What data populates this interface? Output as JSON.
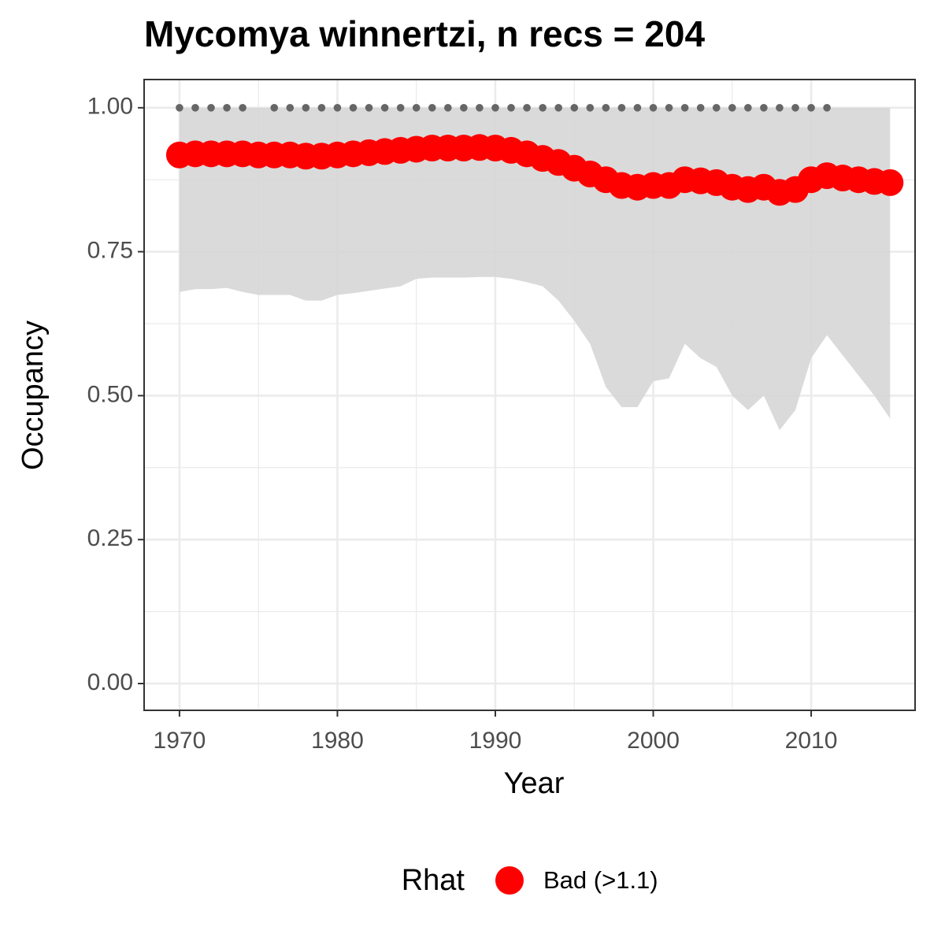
{
  "chart_data": {
    "type": "line",
    "title": "Mycomya winnertzi, n recs = 204",
    "x_label": "Year",
    "y_label": "Occupancy",
    "x": [
      1970,
      1971,
      1972,
      1973,
      1974,
      1975,
      1976,
      1977,
      1978,
      1979,
      1980,
      1981,
      1982,
      1983,
      1984,
      1985,
      1986,
      1987,
      1988,
      1989,
      1990,
      1991,
      1992,
      1993,
      1994,
      1995,
      1996,
      1997,
      1998,
      1999,
      2000,
      2001,
      2002,
      2003,
      2004,
      2005,
      2006,
      2007,
      2008,
      2009,
      2010,
      2011,
      2012,
      2013,
      2014,
      2015
    ],
    "series": [
      {
        "name": "Bad (>1.1)",
        "color": "#ff0000",
        "values": [
          0.918,
          0.92,
          0.92,
          0.92,
          0.92,
          0.918,
          0.918,
          0.918,
          0.916,
          0.916,
          0.918,
          0.92,
          0.922,
          0.924,
          0.926,
          0.928,
          0.93,
          0.93,
          0.93,
          0.931,
          0.93,
          0.926,
          0.92,
          0.912,
          0.905,
          0.895,
          0.885,
          0.875,
          0.865,
          0.862,
          0.865,
          0.865,
          0.875,
          0.873,
          0.87,
          0.862,
          0.858,
          0.862,
          0.853,
          0.858,
          0.875,
          0.882,
          0.878,
          0.875,
          0.872,
          0.87
        ]
      }
    ],
    "ribbon": {
      "color": "#d6d6d6",
      "upper": [
        1,
        1,
        1,
        1,
        1,
        1,
        1,
        1,
        1,
        1,
        1,
        1,
        1,
        1,
        1,
        1,
        1,
        1,
        1,
        1,
        1,
        1,
        1,
        1,
        1,
        1,
        1,
        1,
        1,
        1,
        1,
        1,
        1,
        1,
        1,
        1,
        1,
        1,
        1,
        1,
        1,
        1,
        1,
        1,
        1,
        1
      ],
      "lower": [
        0.68,
        0.685,
        0.685,
        0.687,
        0.68,
        0.675,
        0.675,
        0.675,
        0.665,
        0.665,
        0.675,
        0.678,
        0.682,
        0.686,
        0.69,
        0.703,
        0.705,
        0.705,
        0.705,
        0.706,
        0.706,
        0.703,
        0.697,
        0.69,
        0.665,
        0.63,
        0.59,
        0.515,
        0.48,
        0.48,
        0.525,
        0.53,
        0.59,
        0.565,
        0.55,
        0.5,
        0.475,
        0.5,
        0.44,
        0.475,
        0.565,
        0.605,
        0.57,
        0.535,
        0.5,
        0.46
      ]
    },
    "markers": {
      "color": "#666666",
      "x": [
        1970,
        1971,
        1972,
        1973,
        1974,
        1976,
        1977,
        1978,
        1979,
        1980,
        1981,
        1982,
        1983,
        1984,
        1985,
        1986,
        1987,
        1988,
        1989,
        1990,
        1991,
        1992,
        1993,
        1994,
        1995,
        1996,
        1997,
        1998,
        1999,
        2000,
        2001,
        2002,
        2003,
        2004,
        2005,
        2006,
        2007,
        2008,
        2009,
        2010,
        2011
      ],
      "values": [
        1,
        1,
        1,
        1,
        1,
        1,
        1,
        1,
        1,
        1,
        1,
        1,
        1,
        1,
        1,
        1,
        1,
        1,
        1,
        1,
        1,
        1,
        1,
        1,
        1,
        1,
        1,
        1,
        1,
        1,
        1,
        1,
        1,
        1,
        1,
        1,
        1,
        1,
        1,
        1,
        1
      ]
    },
    "xlim": [
      1967.76,
      2016.58
    ],
    "ylim": [
      -0.0465,
      1.049
    ],
    "xticks": [
      1970,
      1980,
      1990,
      2000,
      2010
    ],
    "yticks": [
      {
        "value": 0,
        "label": "0.00"
      },
      {
        "value": 0.25,
        "label": "0.25"
      },
      {
        "value": 0.5,
        "label": "0.50"
      },
      {
        "value": 0.75,
        "label": "0.75"
      },
      {
        "value": 1,
        "label": "1.00"
      }
    ],
    "grid": true,
    "legend_title": "Rhat",
    "legend_position": "bottom"
  }
}
